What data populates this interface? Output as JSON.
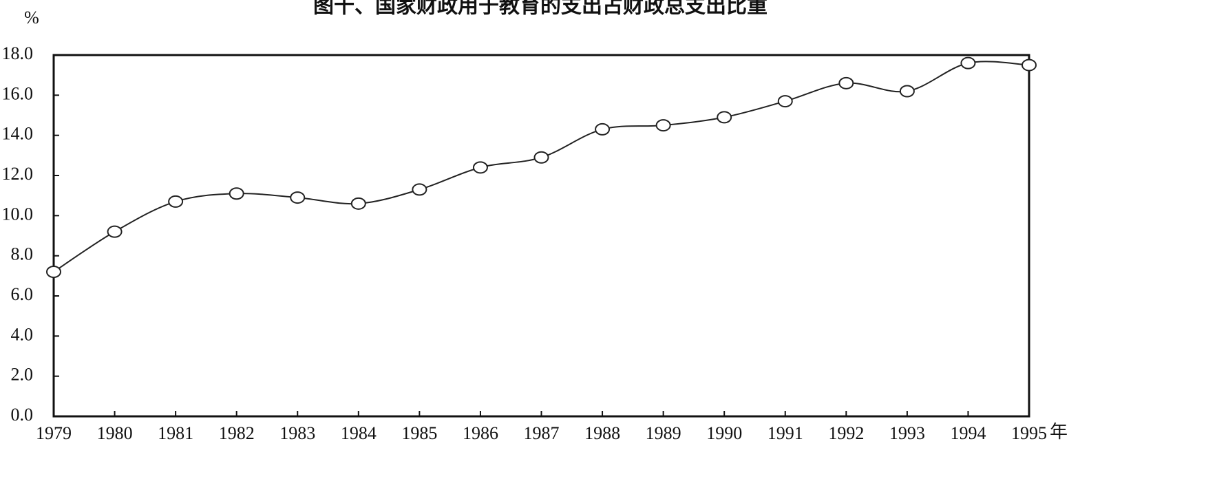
{
  "chart_data": {
    "type": "line",
    "title": "图十、国家财政用于教育的支出占财政总支出比重",
    "y_label": "%",
    "x_label": "年",
    "x": [
      1979,
      1980,
      1981,
      1982,
      1983,
      1984,
      1985,
      1986,
      1987,
      1988,
      1989,
      1990,
      1991,
      1992,
      1993,
      1994,
      1995
    ],
    "series": [
      {
        "color": "#222222",
        "values": [
          7.2,
          9.2,
          10.7,
          11.1,
          10.9,
          10.6,
          11.3,
          12.4,
          12.9,
          14.3,
          14.5,
          14.9,
          15.7,
          16.6,
          16.2,
          17.6,
          17.5
        ]
      }
    ],
    "xlim": [
      1979,
      1995
    ],
    "xticks": [
      1979,
      1980,
      1981,
      1982,
      1983,
      1984,
      1985,
      1986,
      1987,
      1988,
      1989,
      1990,
      1991,
      1992,
      1993,
      1994,
      1995
    ],
    "ylim": [
      0,
      18
    ],
    "yticks": [
      {
        "value": 0,
        "label": "0.0"
      },
      {
        "value": 2,
        "label": "2.0"
      },
      {
        "value": 4,
        "label": "4.0"
      },
      {
        "value": 6,
        "label": "6.0"
      },
      {
        "value": 8,
        "label": "8.0"
      },
      {
        "value": 10,
        "label": "10.0"
      },
      {
        "value": 12,
        "label": "12.0"
      },
      {
        "value": 14,
        "label": "14.0"
      },
      {
        "value": 16,
        "label": "16.0"
      },
      {
        "value": 18,
        "label": "18.0"
      }
    ],
    "grid": false
  }
}
